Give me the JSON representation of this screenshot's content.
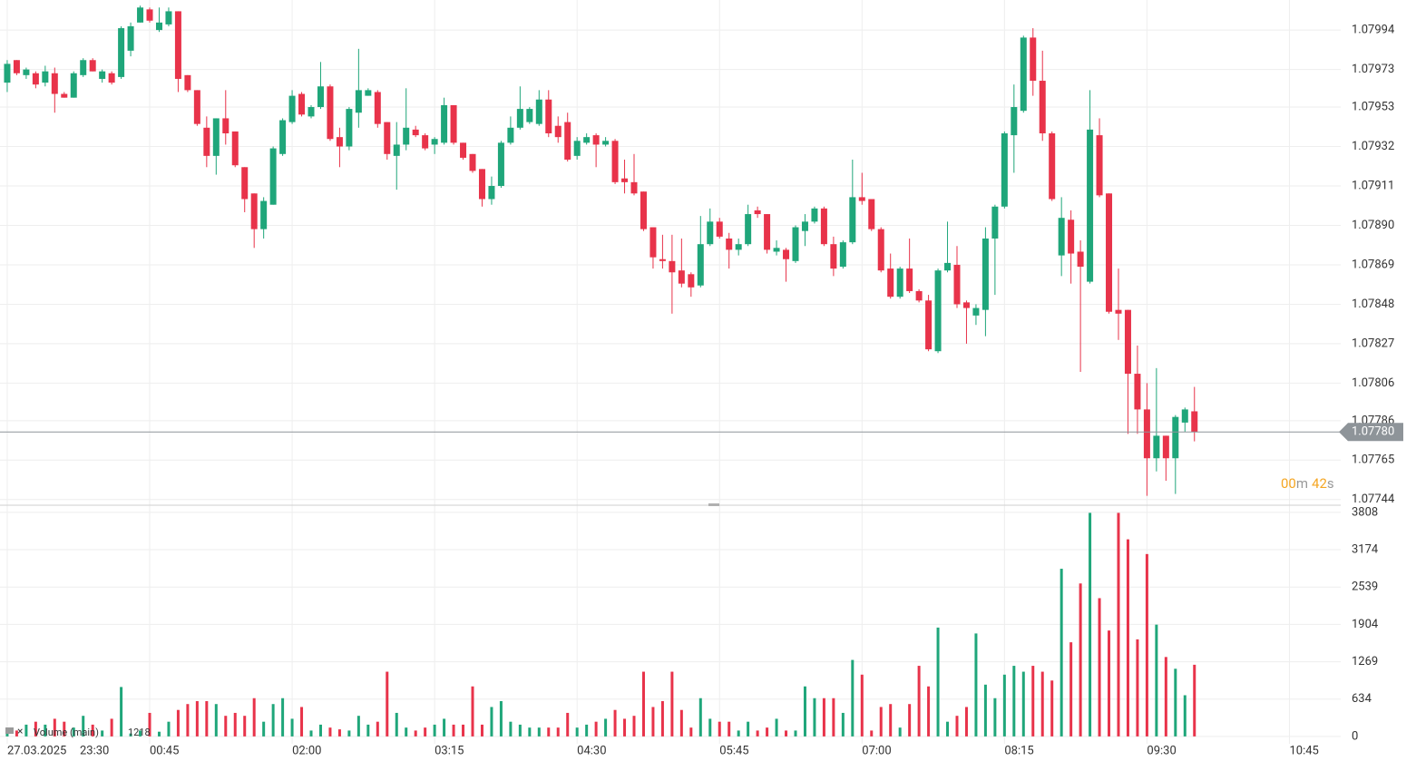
{
  "chart_data": [
    {
      "type": "candlestick",
      "x": [
        0,
        1,
        2,
        3,
        4,
        5,
        6,
        7,
        8,
        9,
        10,
        11,
        12,
        13,
        14,
        15,
        16,
        17,
        18,
        19,
        20,
        21,
        22,
        23,
        24,
        25,
        26,
        27,
        28,
        29,
        30,
        31,
        32,
        33,
        34,
        35,
        36,
        37,
        38,
        39,
        40,
        41,
        42,
        43,
        44,
        45,
        46,
        47,
        48,
        49,
        50,
        51,
        52,
        53,
        54,
        55,
        56,
        57,
        58,
        59,
        60,
        61,
        62,
        63,
        64,
        65,
        66,
        67,
        68,
        69,
        70,
        71,
        72,
        73,
        74,
        75,
        76,
        77,
        78,
        79,
        80,
        81,
        82,
        83,
        84,
        85,
        86,
        87,
        88,
        89,
        90,
        91,
        92,
        93,
        94,
        95,
        96,
        97,
        98,
        99,
        100,
        101,
        102,
        103,
        104,
        105,
        106,
        107,
        108,
        109,
        110,
        111,
        112,
        113,
        114,
        115,
        116,
        117,
        118,
        119,
        120,
        121,
        122,
        123,
        124,
        125
      ],
      "open": [
        1.07966,
        1.07978,
        1.0797,
        1.07971,
        1.07966,
        1.07971,
        1.0796,
        1.07958,
        1.0797,
        1.07978,
        1.07968,
        1.07971,
        1.07969,
        1.07983,
        1.07998,
        1.08005,
        1.07994,
        1.07997,
        1.08004,
        1.0797,
        1.07962,
        1.07942,
        1.07927,
        1.07947,
        1.0794,
        1.07921,
        1.07907,
        1.07888,
        1.07901,
        1.07928,
        1.07945,
        1.0796,
        1.07948,
        1.07953,
        1.07964,
        1.07937,
        1.07932,
        1.0795,
        1.07959,
        1.07961,
        1.07945,
        1.07927,
        1.07933,
        1.07941,
        1.07938,
        1.07933,
        1.07934,
        1.07954,
        1.07934,
        1.07928,
        1.0792,
        1.07904,
        1.07911,
        1.07934,
        1.07942,
        1.07945,
        1.07944,
        1.07957,
        1.07943,
        1.07945,
        1.07927,
        1.07934,
        1.07938,
        1.07933,
        1.07935,
        1.07915,
        1.07913,
        1.07908,
        1.07889,
        1.07872,
        1.07871,
        1.07866,
        1.07864,
        1.07858,
        1.0788,
        1.07892,
        1.07883,
        1.07877,
        1.0788,
        1.07898,
        1.07896,
        1.07876,
        1.07877,
        1.07871,
        1.07887,
        1.07892,
        1.07899,
        1.0788,
        1.07868,
        1.07881,
        1.07905,
        1.07904,
        1.07888,
        1.07867,
        1.07852,
        1.07867,
        1.07855,
        1.0785,
        1.07823,
        1.07866,
        1.07869,
        1.07849,
        1.07842,
        1.07845,
        1.07883,
        1.079,
        1.07938,
        1.07951,
        1.0799,
        1.07967,
        1.07939,
        1.07874,
        1.07893,
        1.07876,
        1.0786,
        1.07938,
        1.07907,
        1.07845,
        1.07845,
        1.07811,
        1.07792,
        1.07766,
        1.07778,
        1.07766,
        1.07785,
        1.07791
      ],
      "high": [
        1.07978,
        1.07978,
        1.07974,
        1.07972,
        1.07975,
        1.07974,
        1.07961,
        1.07972,
        1.07979,
        1.07979,
        1.07973,
        1.07972,
        1.07996,
        1.07998,
        1.08007,
        1.08006,
        1.08006,
        1.08006,
        1.08004,
        1.0797,
        1.07962,
        1.07948,
        1.07947,
        1.07962,
        1.0794,
        1.07921,
        1.07907,
        1.07905,
        1.07932,
        1.07947,
        1.07962,
        1.07961,
        1.07954,
        1.07977,
        1.07965,
        1.07942,
        1.07953,
        1.07984,
        1.07963,
        1.07962,
        1.07945,
        1.07945,
        1.07963,
        1.07943,
        1.07939,
        1.07937,
        1.07958,
        1.07954,
        1.07934,
        1.07928,
        1.0792,
        1.07916,
        1.07935,
        1.07948,
        1.07964,
        1.07953,
        1.07962,
        1.07962,
        1.07948,
        1.0795,
        1.07937,
        1.07939,
        1.07939,
        1.07937,
        1.07936,
        1.07925,
        1.07928,
        1.07908,
        1.07889,
        1.07885,
        1.07885,
        1.07883,
        1.07865,
        1.07895,
        1.07899,
        1.07894,
        1.07886,
        1.07883,
        1.07901,
        1.079,
        1.07896,
        1.07882,
        1.07878,
        1.0789,
        1.07896,
        1.079,
        1.079,
        1.07884,
        1.07882,
        1.07925,
        1.07918,
        1.07904,
        1.07889,
        1.07875,
        1.07868,
        1.07883,
        1.07856,
        1.07853,
        1.07867,
        1.07892,
        1.07879,
        1.0785,
        1.07848,
        1.07889,
        1.07901,
        1.0794,
        1.07965,
        1.07991,
        1.07995,
        1.07983,
        1.0794,
        1.07905,
        1.07898,
        1.07882,
        1.07962,
        1.07947,
        1.07907,
        1.07867,
        1.07845,
        1.07826,
        1.07806,
        1.07814,
        1.07778,
        1.07789,
        1.07793,
        1.07804
      ],
      "low": [
        1.07961,
        1.0797,
        1.07968,
        1.07963,
        1.07964,
        1.0795,
        1.07958,
        1.07958,
        1.07969,
        1.07972,
        1.07966,
        1.07965,
        1.07968,
        1.0798,
        1.07998,
        1.07998,
        1.07993,
        1.07996,
        1.07961,
        1.07961,
        1.07943,
        1.07921,
        1.07917,
        1.07933,
        1.07921,
        1.07897,
        1.07878,
        1.07883,
        1.07901,
        1.07927,
        1.07944,
        1.07948,
        1.07947,
        1.07952,
        1.07935,
        1.07921,
        1.0793,
        1.07942,
        1.07959,
        1.07942,
        1.07925,
        1.07909,
        1.0793,
        1.07937,
        1.0793,
        1.07928,
        1.07933,
        1.07933,
        1.07925,
        1.07918,
        1.079,
        1.07901,
        1.0791,
        1.07933,
        1.07941,
        1.07944,
        1.07943,
        1.07937,
        1.07934,
        1.07924,
        1.07925,
        1.07933,
        1.07921,
        1.07932,
        1.07912,
        1.07907,
        1.07906,
        1.07887,
        1.07867,
        1.07867,
        1.07843,
        1.07857,
        1.07852,
        1.07857,
        1.07879,
        1.07883,
        1.07867,
        1.07874,
        1.07879,
        1.07894,
        1.07875,
        1.07874,
        1.0786,
        1.0787,
        1.07879,
        1.07891,
        1.07879,
        1.07863,
        1.07867,
        1.0788,
        1.07901,
        1.07887,
        1.07865,
        1.07851,
        1.07851,
        1.07854,
        1.07849,
        1.07823,
        1.07822,
        1.07865,
        1.07846,
        1.07827,
        1.07837,
        1.07831,
        1.07853,
        1.07899,
        1.07918,
        1.0795,
        1.07959,
        1.07935,
        1.07903,
        1.07863,
        1.07859,
        1.07812,
        1.07859,
        1.07905,
        1.07843,
        1.07829,
        1.07779,
        1.07779,
        1.07746,
        1.07759,
        1.07754,
        1.07747,
        1.0778,
        1.07775
      ],
      "close": [
        1.07976,
        1.07971,
        1.07973,
        1.07965,
        1.07972,
        1.0796,
        1.07958,
        1.07971,
        1.07978,
        1.07972,
        1.07972,
        1.07966,
        1.07995,
        1.07996,
        1.08006,
        1.07999,
        1.07998,
        1.08004,
        1.07968,
        1.07962,
        1.07944,
        1.07927,
        1.07947,
        1.07939,
        1.07922,
        1.07904,
        1.07888,
        1.07903,
        1.07931,
        1.07946,
        1.07959,
        1.07949,
        1.07953,
        1.07964,
        1.07936,
        1.07932,
        1.07952,
        1.07962,
        1.07962,
        1.07944,
        1.07928,
        1.07933,
        1.07942,
        1.07938,
        1.07931,
        1.07936,
        1.07954,
        1.07934,
        1.07926,
        1.07919,
        1.07904,
        1.07911,
        1.07934,
        1.07942,
        1.07952,
        1.07952,
        1.07957,
        1.07939,
        1.07937,
        1.07925,
        1.07935,
        1.07937,
        1.07933,
        1.07935,
        1.07913,
        1.07913,
        1.07907,
        1.07888,
        1.07873,
        1.07871,
        1.07865,
        1.07859,
        1.07857,
        1.0788,
        1.07892,
        1.07884,
        1.07877,
        1.0788,
        1.07896,
        1.07896,
        1.07877,
        1.07878,
        1.07872,
        1.07889,
        1.07892,
        1.07899,
        1.0788,
        1.07867,
        1.07881,
        1.07905,
        1.07903,
        1.07888,
        1.07866,
        1.07852,
        1.07867,
        1.07855,
        1.0785,
        1.07824,
        1.07866,
        1.0787,
        1.07848,
        1.07846,
        1.07846,
        1.07883,
        1.079,
        1.07939,
        1.07953,
        1.0799,
        1.07967,
        1.07939,
        1.07904,
        1.07894,
        1.07875,
        1.07868,
        1.07941,
        1.07906,
        1.07844,
        1.07843,
        1.07811,
        1.07792,
        1.07766,
        1.07778,
        1.07766,
        1.07788,
        1.07792,
        1.0778
      ],
      "up_color": "#1fa67a",
      "down_color": "#e8334a",
      "ylim": [
        1.07741,
        1.0801
      ],
      "yticks": [
        1.07744,
        1.07765,
        {
          "value": 1.07786,
          "label": "1.07786"
        },
        1.07806,
        1.07827,
        1.07848,
        1.07869,
        {
          "value": 1.0789,
          "label": "1.07890"
        },
        1.07911,
        1.07932,
        1.07953,
        1.07973,
        1.07994
      ],
      "last_price": {
        "value": 1.0778,
        "label": "1.07780"
      },
      "countdown": {
        "minutes": "00",
        "minutes_unit": "m",
        "seconds": "42",
        "seconds_unit": "s"
      },
      "grid": true
    },
    {
      "type": "bar",
      "legend_label": "Volume (main)",
      "last_value": 1218,
      "values": [
        150,
        100,
        200,
        250,
        200,
        300,
        250,
        150,
        350,
        200,
        100,
        300,
        840,
        50,
        100,
        400,
        80,
        250,
        450,
        550,
        600,
        600,
        550,
        350,
        400,
        350,
        650,
        250,
        550,
        650,
        300,
        500,
        100,
        200,
        150,
        120,
        100,
        350,
        200,
        250,
        1100,
        400,
        150,
        100,
        150,
        200,
        300,
        200,
        200,
        850,
        200,
        500,
        600,
        250,
        200,
        150,
        150,
        150,
        150,
        400,
        150,
        200,
        250,
        300,
        450,
        300,
        350,
        1100,
        500,
        600,
        1100,
        450,
        150,
        650,
        300,
        250,
        250,
        100,
        250,
        100,
        150,
        300,
        100,
        100,
        850,
        650,
        650,
        650,
        400,
        1300,
        1050,
        100,
        500,
        550,
        150,
        550,
        1200,
        850,
        1850,
        250,
        350,
        500,
        1750,
        880,
        650,
        1050,
        1200,
        1100,
        1200,
        1100,
        950,
        2850,
        1600,
        2600,
        3800,
        2350,
        1800,
        3800,
        3350,
        1650,
        3100,
        1900,
        1350,
        1150,
        700,
        1218
      ],
      "ylim": [
        -125,
        3930
      ],
      "yticks": [
        0,
        634,
        1269,
        1904,
        2539,
        3174,
        3808
      ],
      "grid": true
    }
  ],
  "time_axis": {
    "date": "27.03.2025",
    "xlim": [
      -0.76,
      140.4
    ],
    "xticks": [
      {
        "value": 0,
        "label": "23:30"
      },
      {
        "value": 15,
        "label": "00:45"
      },
      {
        "value": 30,
        "label": "02:00"
      },
      {
        "value": 45,
        "label": "03:15"
      },
      {
        "value": 60,
        "label": "04:30"
      },
      {
        "value": 75,
        "label": "05:45"
      },
      {
        "value": 90,
        "label": "07:00"
      },
      {
        "value": 105,
        "label": "08:15"
      },
      {
        "value": 120,
        "label": "09:30"
      },
      {
        "value": 135,
        "label": "10:45"
      }
    ]
  }
}
